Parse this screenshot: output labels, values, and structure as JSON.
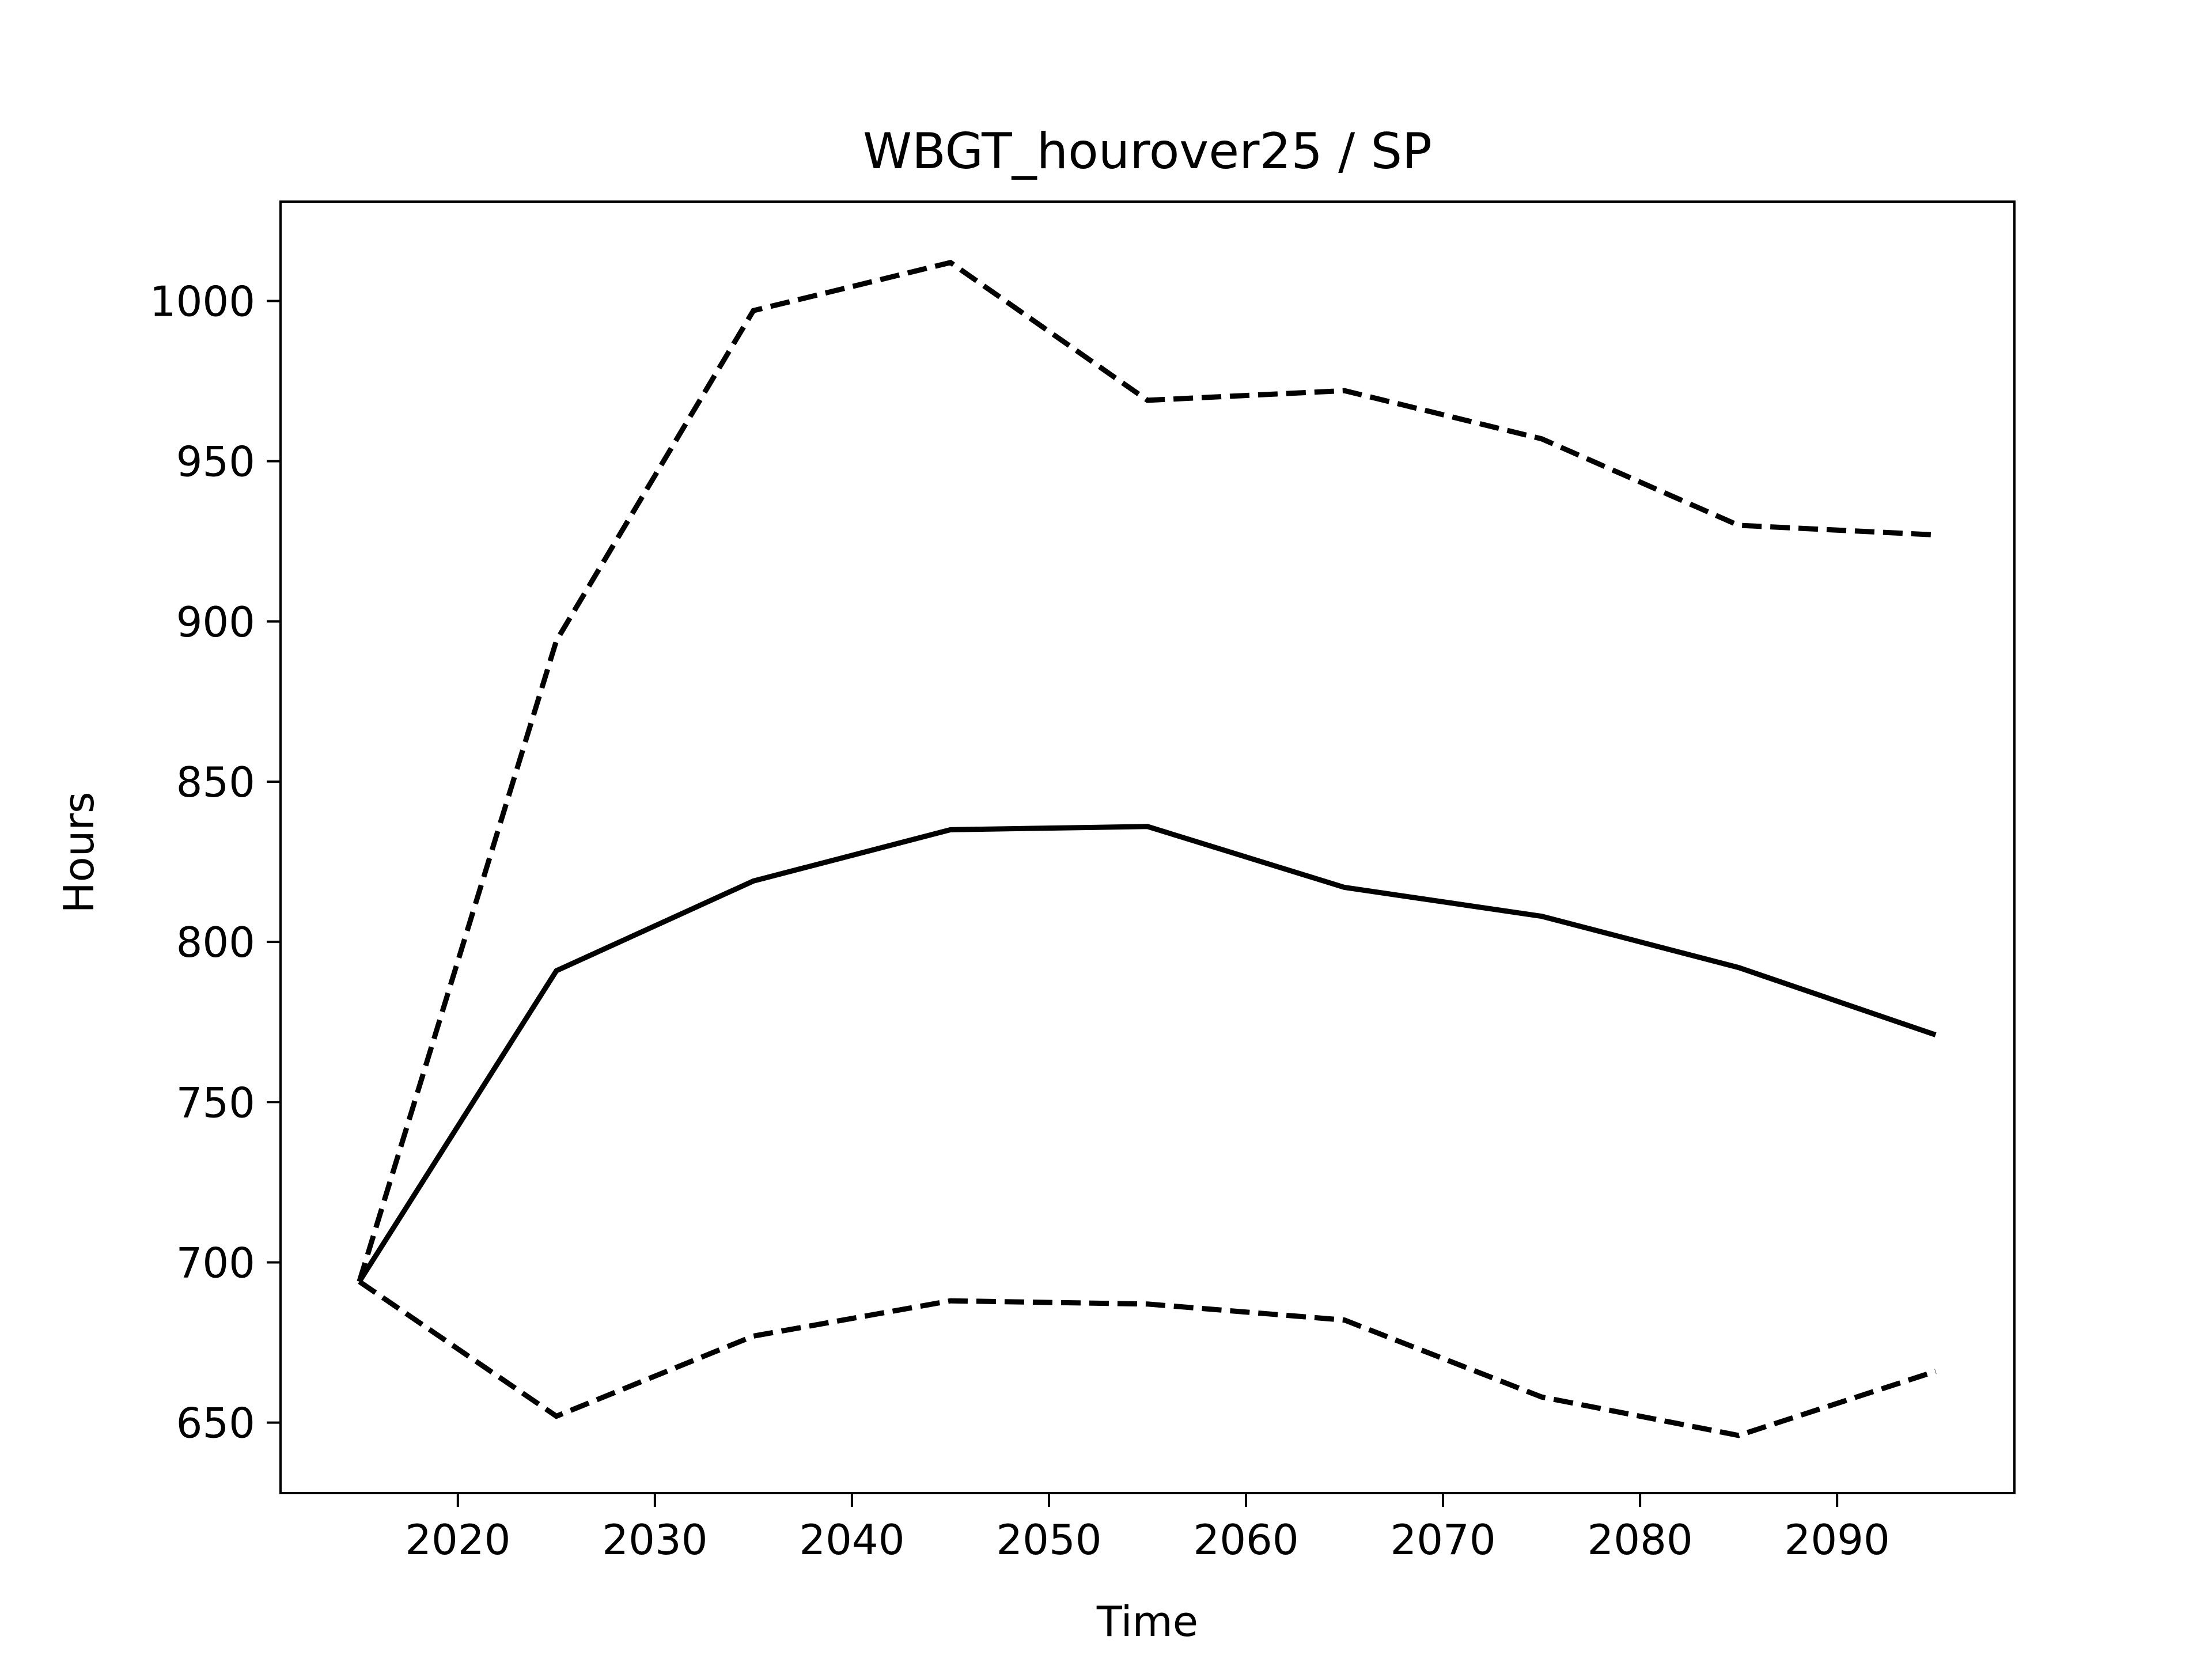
{
  "chart_data": {
    "type": "line",
    "title": "WBGT_hourover25 / SP",
    "xlabel": "Time",
    "ylabel": "Hours",
    "xlim": [
      2011,
      2099
    ],
    "ylim": [
      628,
      1031
    ],
    "x_ticks": [
      2020,
      2030,
      2040,
      2050,
      2060,
      2070,
      2080,
      2090
    ],
    "y_ticks": [
      650,
      700,
      750,
      800,
      850,
      900,
      950,
      1000
    ],
    "x": [
      2015,
      2025,
      2035,
      2045,
      2055,
      2065,
      2075,
      2085,
      2095
    ],
    "grid": false,
    "legend": "none",
    "series": [
      {
        "style": "solid",
        "color": "#000000",
        "values": [
          694,
          791,
          819,
          835,
          836,
          817,
          808,
          792,
          771
        ]
      },
      {
        "style": "dashed",
        "color": "#000000",
        "values": [
          694,
          894,
          997,
          1012,
          969,
          972,
          957,
          930,
          927
        ]
      },
      {
        "style": "dashed",
        "color": "#000000",
        "values": [
          694,
          652,
          677,
          688,
          687,
          682,
          658,
          646,
          666
        ]
      }
    ]
  }
}
